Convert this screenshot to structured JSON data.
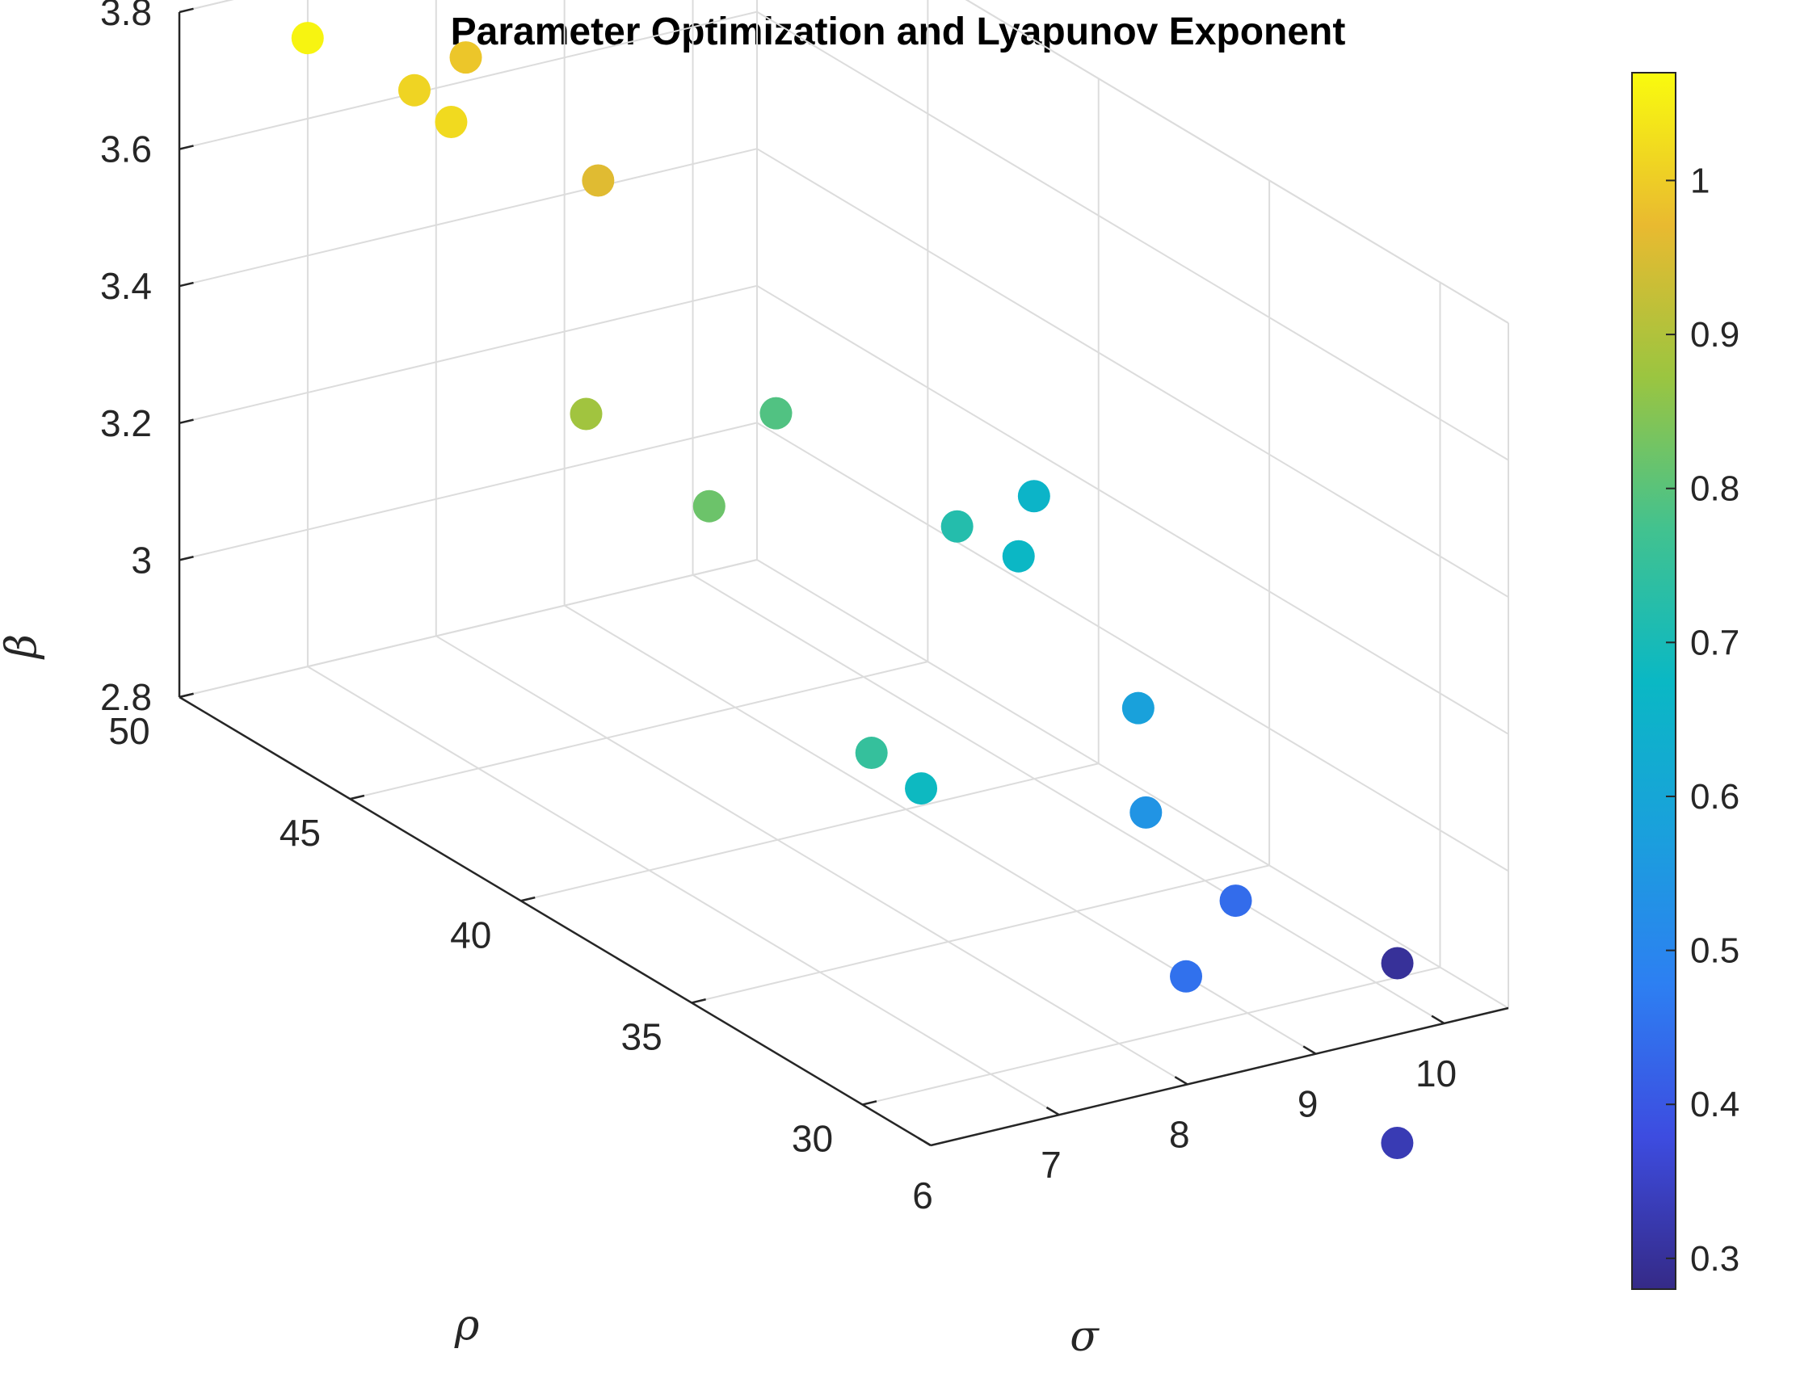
{
  "chart_data": {
    "type": "scatter3d",
    "title": "Parameter Optimization and Lyapunov Exponent",
    "xlabel": "σ",
    "ylabel": "ρ",
    "zlabel": "β",
    "xlim": [
      6,
      10.5
    ],
    "ylim": [
      28,
      50
    ],
    "zlim": [
      2.8,
      3.8
    ],
    "xticks": [
      "6",
      "7",
      "8",
      "9",
      "10"
    ],
    "yticks": [
      "30",
      "35",
      "40",
      "45",
      "50"
    ],
    "zticks": [
      "2.8",
      "3",
      "3.2",
      "3.4",
      "3.6",
      "3.8"
    ],
    "grid": true,
    "colormap": "parula",
    "colorbar": {
      "range": [
        0.28,
        1.07
      ],
      "ticks": [
        "0.3",
        "0.4",
        "0.5",
        "0.6",
        "0.7",
        "0.8",
        "0.9",
        "1"
      ]
    },
    "points": [
      {
        "sigma": 6.6,
        "rho": 48.5,
        "beta": 3.78,
        "lyapunov": 1.06
      },
      {
        "sigma": 6.9,
        "rho": 46.5,
        "beta": 3.75,
        "lyapunov": 1.01
      },
      {
        "sigma": 7.0,
        "rho": 45.8,
        "beta": 3.72,
        "lyapunov": 1.02
      },
      {
        "sigma": 7.3,
        "rho": 46.5,
        "beta": 3.78,
        "lyapunov": 0.99
      },
      {
        "sigma": 7.4,
        "rho": 43.0,
        "beta": 3.7,
        "lyapunov": 0.96
      },
      {
        "sigma": 7.2,
        "rho": 42.6,
        "beta": 3.38,
        "lyapunov": 0.88
      },
      {
        "sigma": 7.6,
        "rho": 40.5,
        "beta": 3.29,
        "lyapunov": 0.82
      },
      {
        "sigma": 8.2,
        "rho": 40.8,
        "beta": 3.39,
        "lyapunov": 0.79
      },
      {
        "sigma": 7.8,
        "rho": 36.5,
        "beta": 3.04,
        "lyapunov": 0.75
      },
      {
        "sigma": 8.0,
        "rho": 35.8,
        "beta": 3.0,
        "lyapunov": 0.68
      },
      {
        "sigma": 8.6,
        "rho": 37.0,
        "beta": 3.32,
        "lyapunov": 0.72
      },
      {
        "sigma": 8.6,
        "rho": 35.2,
        "beta": 3.33,
        "lyapunov": 0.67
      },
      {
        "sigma": 8.8,
        "rho": 35.5,
        "beta": 3.4,
        "lyapunov": 0.66
      },
      {
        "sigma": 9.0,
        "rho": 33.2,
        "beta": 3.15,
        "lyapunov": 0.58
      },
      {
        "sigma": 8.9,
        "rho": 32.6,
        "beta": 3.02,
        "lyapunov": 0.54
      },
      {
        "sigma": 9.0,
        "rho": 31.8,
        "beta": 2.8,
        "lyapunov": 0.45
      },
      {
        "sigma": 9.6,
        "rho": 32.6,
        "beta": 2.86,
        "lyapunov": 0.44
      },
      {
        "sigma": 9.9,
        "rho": 29.0,
        "beta": 2.6,
        "lyapunov": 0.33
      },
      {
        "sigma": 10.3,
        "rho": 30.5,
        "beta": 2.8,
        "lyapunov": 0.3
      }
    ]
  }
}
